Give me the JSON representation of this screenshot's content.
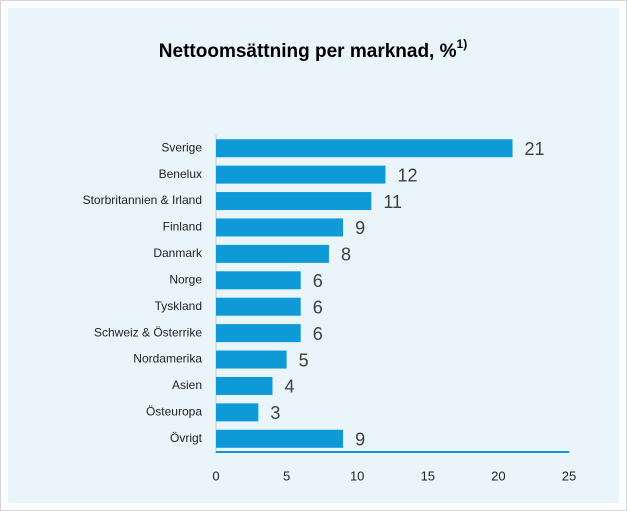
{
  "chart_data": {
    "type": "bar",
    "orientation": "horizontal",
    "title": "Nettoomsättning per marknad, %",
    "title_footnote": "1)",
    "categories": [
      "Sverige",
      "Benelux",
      "Storbritannien & Irland",
      "Finland",
      "Danmark",
      "Norge",
      "Tyskland",
      "Schweiz & Österrike",
      "Nordamerika",
      "Asien",
      "Östeuropa",
      "Övrigt"
    ],
    "values": [
      21,
      12,
      11,
      9,
      8,
      6,
      6,
      6,
      5,
      4,
      3,
      9
    ],
    "color": "#0e9ad7",
    "xlim": [
      0,
      25
    ],
    "xticks": [
      0,
      5,
      10,
      15,
      20,
      25
    ],
    "grid": false
  }
}
